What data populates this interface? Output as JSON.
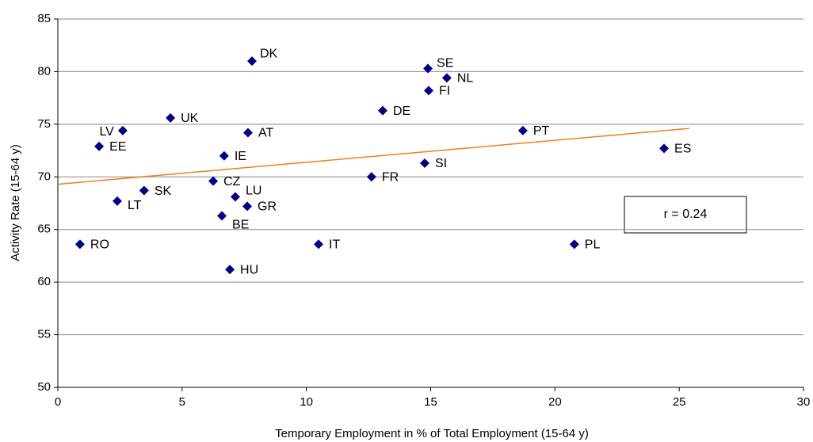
{
  "chart_data": {
    "type": "scatter",
    "x_label": "Temporary Employment in % of Total Employment (15-64 y)",
    "y_label": "Activity Rate (15-64 y)",
    "point_labels": [
      "DK",
      "SE",
      "NL",
      "FI",
      "DE",
      "UK",
      "LV",
      "AT",
      "PT",
      "EE",
      "ES",
      "IE",
      "SI",
      "FR",
      "CZ",
      "SK",
      "LU",
      "LT",
      "GR",
      "BE",
      "RO",
      "IT",
      "PL",
      "HU"
    ],
    "x": [
      7.81,
      14.89,
      15.65,
      14.92,
      13.07,
      4.53,
      2.61,
      7.65,
      18.71,
      1.66,
      24.39,
      6.69,
      14.76,
      12.62,
      6.25,
      3.47,
      7.14,
      2.39,
      7.62,
      6.6,
      0.89,
      10.49,
      20.78,
      6.92
    ],
    "values": [
      81.0,
      80.3,
      79.4,
      78.2,
      76.3,
      75.6,
      74.4,
      74.2,
      74.4,
      72.9,
      72.7,
      72.0,
      71.3,
      70.0,
      69.6,
      68.7,
      68.1,
      67.7,
      67.2,
      66.3,
      63.6,
      63.6,
      63.6,
      61.2
    ],
    "color": "#000080",
    "trendline": {
      "x": [
        0,
        25.4
      ],
      "values": [
        69.3,
        74.6
      ],
      "color": "#f07f1a"
    },
    "annotation": "r = 0.24",
    "xlim": [
      0,
      30
    ],
    "xticks": [
      0,
      5,
      10,
      15,
      20,
      25,
      30
    ],
    "ylim": [
      50,
      85
    ],
    "yticks": [
      50,
      55,
      60,
      65,
      70,
      75,
      80,
      85
    ],
    "grid": true
  }
}
